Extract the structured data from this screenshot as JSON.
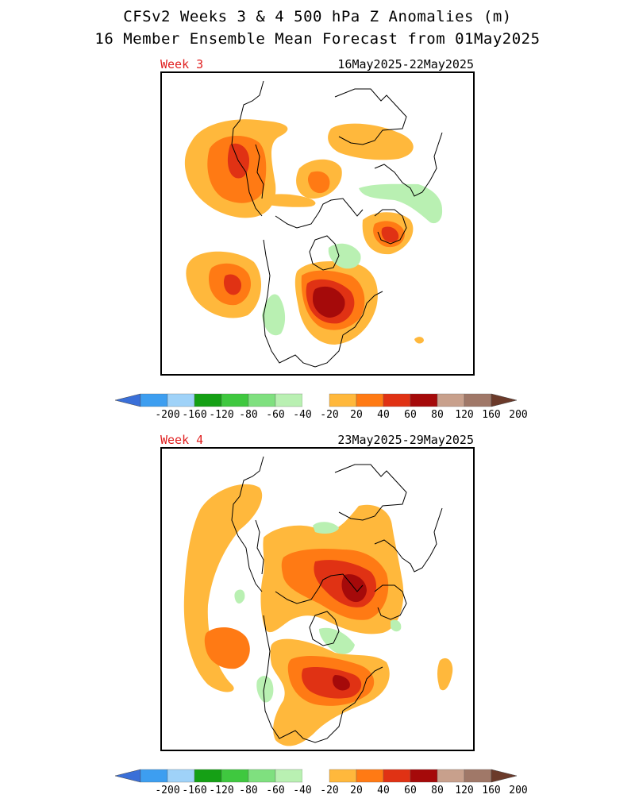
{
  "title_line1": "CFSv2 Weeks 3 & 4 500 hPa Z Anomalies (m)",
  "title_line2": "16 Member Ensemble Mean Forecast from 01May2025",
  "panels": [
    {
      "label": "Week 3",
      "dates": "16May2025-22May2025"
    },
    {
      "label": "Week 4",
      "dates": "23May2025-29May2025"
    }
  ],
  "colorbar": {
    "labels": [
      "-200",
      "-160",
      "-120",
      "-80",
      "-60",
      "-40",
      "-20",
      "20",
      "40",
      "60",
      "80",
      "120",
      "160",
      "200"
    ],
    "colors": [
      "#3a6fd8",
      "#3d9ef0",
      "#9fd2f8",
      "#15a015",
      "#3fc83f",
      "#7fe07f",
      "#b9f0b2",
      "#ffffff",
      "#ffb83c",
      "#ff7a14",
      "#e03214",
      "#a50a0a",
      "#c8a08c",
      "#a07868",
      "#6b3a2a"
    ]
  },
  "anomaly_colors": {
    "p20": "#ffb83c",
    "p40": "#ff7a14",
    "p60": "#e03214",
    "p80": "#a50a0a",
    "n20": "#b9f0b2"
  }
}
